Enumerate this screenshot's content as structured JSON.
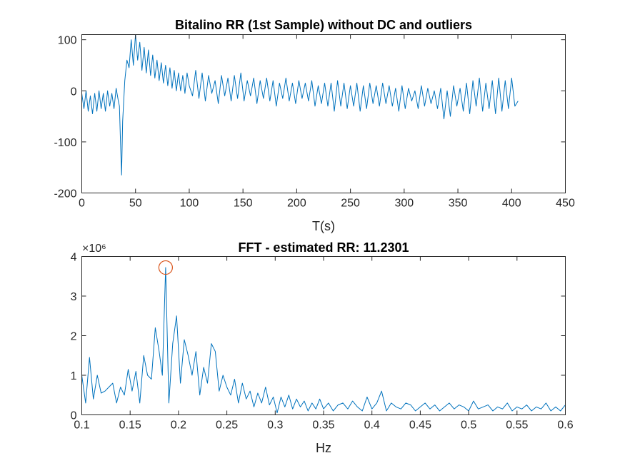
{
  "chart_data": [
    {
      "type": "line",
      "title": "Bitalino RR (1st Sample) without DC and outliers",
      "xlabel": "T(s)",
      "ylabel": "",
      "xlim": [
        0,
        450
      ],
      "ylim": [
        -200,
        110
      ],
      "xticks": [
        0,
        50,
        100,
        150,
        200,
        250,
        300,
        350,
        400,
        450
      ],
      "yticks": [
        -200,
        -100,
        0,
        100
      ],
      "grid": false,
      "color": "#0072BD",
      "series": [
        {
          "x": [
            0,
            2,
            4,
            6,
            8,
            10,
            12,
            14,
            16,
            18,
            20,
            22,
            24,
            26,
            28,
            30,
            32,
            34,
            35,
            36,
            37,
            38,
            40,
            42,
            44,
            46,
            48,
            50,
            52,
            54,
            56,
            58,
            60,
            62,
            64,
            66,
            68,
            70,
            72,
            74,
            76,
            78,
            80,
            82,
            84,
            86,
            88,
            90,
            92,
            94,
            96,
            98,
            100,
            103,
            106,
            109,
            112,
            115,
            118,
            121,
            124,
            127,
            130,
            133,
            136,
            139,
            142,
            145,
            148,
            151,
            154,
            157,
            160,
            163,
            166,
            169,
            172,
            175,
            178,
            181,
            184,
            187,
            190,
            193,
            196,
            199,
            202,
            205,
            208,
            211,
            214,
            217,
            220,
            223,
            226,
            229,
            232,
            235,
            238,
            241,
            244,
            247,
            250,
            253,
            256,
            259,
            262,
            265,
            268,
            271,
            274,
            277,
            280,
            283,
            286,
            289,
            292,
            295,
            298,
            301,
            304,
            307,
            310,
            313,
            316,
            319,
            322,
            325,
            328,
            331,
            334,
            337,
            340,
            343,
            346,
            349,
            352,
            355,
            358,
            361,
            364,
            367,
            370,
            373,
            376,
            379,
            382,
            385,
            388,
            391,
            394,
            397,
            400,
            403,
            406
          ],
          "y": [
            -5,
            -35,
            0,
            -40,
            -10,
            -45,
            -5,
            -40,
            0,
            -35,
            -5,
            -40,
            0,
            -30,
            -5,
            -35,
            5,
            -20,
            -30,
            -100,
            -165,
            -60,
            20,
            60,
            45,
            100,
            50,
            110,
            60,
            95,
            40,
            85,
            35,
            80,
            30,
            70,
            25,
            60,
            20,
            55,
            15,
            50,
            10,
            45,
            5,
            40,
            0,
            35,
            0,
            30,
            -5,
            35,
            10,
            -10,
            40,
            -15,
            35,
            -20,
            30,
            -5,
            20,
            -25,
            30,
            -10,
            25,
            -20,
            30,
            -15,
            35,
            -20,
            20,
            -10,
            25,
            -25,
            20,
            -15,
            25,
            -20,
            20,
            -30,
            15,
            -15,
            25,
            -20,
            15,
            -25,
            20,
            -15,
            15,
            -20,
            20,
            -30,
            10,
            -25,
            15,
            -30,
            15,
            -40,
            20,
            -30,
            15,
            -35,
            10,
            -30,
            15,
            -40,
            10,
            -35,
            15,
            -25,
            10,
            -30,
            15,
            -25,
            10,
            -30,
            5,
            -40,
            10,
            -35,
            5,
            -20,
            0,
            -35,
            10,
            -30,
            5,
            -25,
            0,
            -35,
            5,
            -55,
            0,
            -50,
            10,
            -30,
            5,
            -40,
            15,
            -45,
            20,
            -30,
            25,
            -40,
            15,
            -35,
            20,
            -45,
            25,
            -40,
            20,
            -35,
            25,
            -30,
            -20
          ]
        }
      ]
    },
    {
      "type": "line",
      "title": "FFT - estimated RR: 11.2301",
      "xlabel": "Hz",
      "ylabel": "",
      "y_exponent": "×10⁶",
      "xlim": [
        0.1,
        0.6
      ],
      "ylim": [
        0,
        4
      ],
      "xticks": [
        0.1,
        0.15,
        0.2,
        0.25,
        0.3,
        0.35,
        0.4,
        0.45,
        0.5,
        0.55,
        0.6
      ],
      "yticks": [
        0,
        1,
        2,
        3,
        4
      ],
      "grid": false,
      "color": "#0072BD",
      "peak_marker": {
        "x": 0.1867,
        "y": 3.72,
        "color": "#D95319"
      },
      "series": [
        {
          "x": [
            0.1,
            0.104,
            0.108,
            0.112,
            0.116,
            0.12,
            0.124,
            0.128,
            0.132,
            0.136,
            0.14,
            0.144,
            0.148,
            0.152,
            0.156,
            0.16,
            0.164,
            0.168,
            0.172,
            0.176,
            0.18,
            0.1833,
            0.1867,
            0.19,
            0.194,
            0.198,
            0.202,
            0.206,
            0.21,
            0.214,
            0.218,
            0.222,
            0.226,
            0.23,
            0.234,
            0.238,
            0.242,
            0.246,
            0.25,
            0.254,
            0.258,
            0.262,
            0.266,
            0.27,
            0.274,
            0.278,
            0.282,
            0.286,
            0.29,
            0.294,
            0.298,
            0.302,
            0.306,
            0.31,
            0.314,
            0.318,
            0.322,
            0.326,
            0.33,
            0.334,
            0.338,
            0.342,
            0.346,
            0.35,
            0.355,
            0.36,
            0.365,
            0.37,
            0.375,
            0.38,
            0.385,
            0.39,
            0.395,
            0.4,
            0.405,
            0.41,
            0.415,
            0.42,
            0.425,
            0.43,
            0.435,
            0.44,
            0.445,
            0.45,
            0.455,
            0.46,
            0.465,
            0.47,
            0.475,
            0.48,
            0.485,
            0.49,
            0.495,
            0.5,
            0.505,
            0.51,
            0.515,
            0.52,
            0.525,
            0.53,
            0.535,
            0.54,
            0.545,
            0.55,
            0.555,
            0.56,
            0.565,
            0.57,
            0.575,
            0.58,
            0.585,
            0.59,
            0.595,
            0.6
          ],
          "y": [
            1.0,
            0.3,
            1.45,
            0.4,
            1.0,
            0.55,
            0.6,
            0.7,
            0.8,
            0.3,
            0.7,
            0.5,
            1.15,
            0.6,
            1.1,
            0.3,
            1.5,
            1.0,
            0.9,
            2.2,
            1.6,
            1.0,
            3.72,
            0.3,
            1.8,
            2.5,
            0.8,
            1.9,
            1.5,
            1.0,
            1.6,
            0.5,
            1.2,
            0.8,
            1.8,
            1.6,
            0.6,
            1.0,
            0.7,
            0.5,
            0.9,
            0.3,
            0.8,
            0.4,
            0.6,
            0.2,
            0.55,
            0.3,
            0.7,
            0.25,
            0.45,
            0.05,
            0.45,
            0.2,
            0.5,
            0.15,
            0.4,
            0.2,
            0.35,
            0.1,
            0.3,
            0.15,
            0.4,
            0.15,
            0.3,
            0.1,
            0.25,
            0.3,
            0.15,
            0.35,
            0.2,
            0.1,
            0.45,
            0.15,
            0.3,
            0.6,
            0.1,
            0.3,
            0.2,
            0.15,
            0.3,
            0.25,
            0.1,
            0.2,
            0.3,
            0.15,
            0.25,
            0.1,
            0.2,
            0.3,
            0.15,
            0.25,
            0.2,
            0.1,
            0.35,
            0.15,
            0.2,
            0.25,
            0.1,
            0.2,
            0.15,
            0.3,
            0.1,
            0.2,
            0.15,
            0.25,
            0.1,
            0.2,
            0.15,
            0.3,
            0.1,
            0.2,
            0.1,
            0.25
          ]
        }
      ]
    }
  ]
}
